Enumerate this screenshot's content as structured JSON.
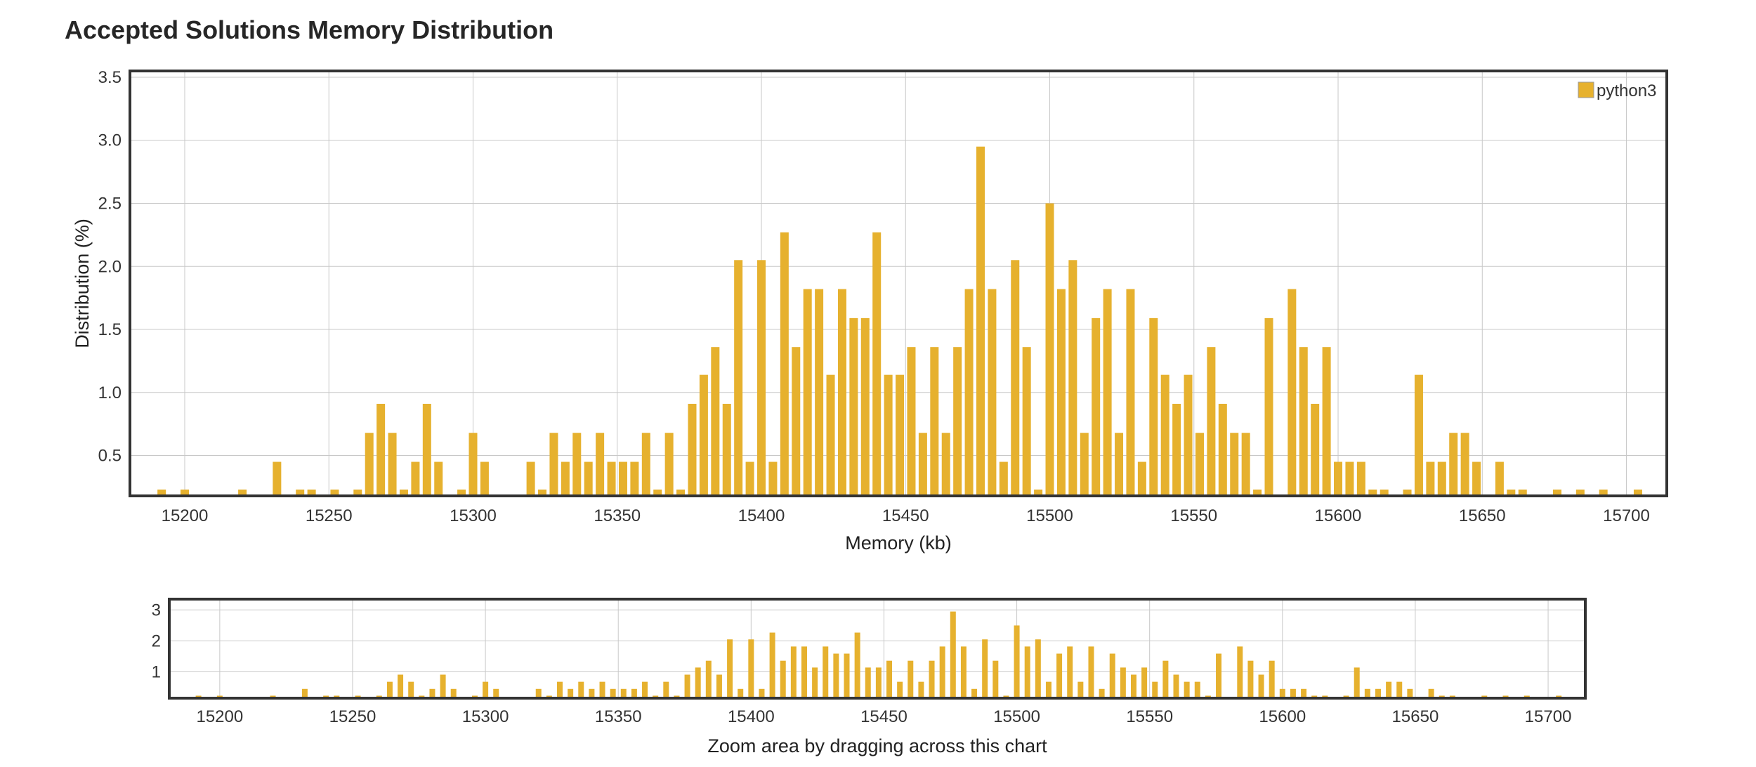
{
  "title": "Accepted Solutions Memory Distribution",
  "colors": {
    "bar": "#e6b12e",
    "grid": "#c8c8c8",
    "frame": "#333333"
  },
  "chart_data": [
    {
      "type": "bar",
      "title": "Accepted Solutions Memory Distribution",
      "xlabel": "Memory (kb)",
      "ylabel": "Distribution (%)",
      "xlim": [
        15181,
        15714
      ],
      "ylim": [
        0.18,
        3.55
      ],
      "xticks": [
        15200,
        15250,
        15300,
        15350,
        15400,
        15450,
        15500,
        15550,
        15600,
        15650,
        15700
      ],
      "yticks": [
        0.5,
        1.0,
        1.5,
        2.0,
        2.5,
        3.0,
        3.5
      ],
      "ytick_labels": [
        "0.5",
        "1.0",
        "1.5",
        "2.0",
        "2.5",
        "3.0",
        "3.5"
      ],
      "grid": true,
      "legend_position": "top-right",
      "series": [
        {
          "name": "python3",
          "x": [
            15192,
            15200,
            15220,
            15232,
            15240,
            15244,
            15252,
            15260,
            15264,
            15268,
            15272,
            15276,
            15280,
            15284,
            15288,
            15296,
            15300,
            15304,
            15320,
            15324,
            15328,
            15332,
            15336,
            15340,
            15344,
            15348,
            15352,
            15356,
            15360,
            15364,
            15368,
            15372,
            15376,
            15380,
            15384,
            15388,
            15392,
            15396,
            15400,
            15404,
            15408,
            15412,
            15416,
            15420,
            15424,
            15428,
            15432,
            15436,
            15440,
            15444,
            15448,
            15452,
            15456,
            15460,
            15464,
            15468,
            15472,
            15476,
            15480,
            15484,
            15488,
            15492,
            15496,
            15500,
            15504,
            15508,
            15512,
            15516,
            15520,
            15524,
            15528,
            15532,
            15536,
            15540,
            15544,
            15548,
            15552,
            15556,
            15560,
            15564,
            15568,
            15572,
            15576,
            15584,
            15588,
            15592,
            15596,
            15600,
            15604,
            15608,
            15612,
            15616,
            15624,
            15628,
            15632,
            15636,
            15640,
            15644,
            15648,
            15656,
            15660,
            15664,
            15676,
            15684,
            15692,
            15704
          ],
          "values": [
            0.23,
            0.23,
            0.23,
            0.45,
            0.23,
            0.23,
            0.23,
            0.23,
            0.68,
            0.91,
            0.68,
            0.23,
            0.45,
            0.91,
            0.45,
            0.23,
            0.68,
            0.45,
            0.45,
            0.23,
            0.68,
            0.45,
            0.68,
            0.45,
            0.68,
            0.45,
            0.45,
            0.45,
            0.68,
            0.23,
            0.68,
            0.23,
            0.91,
            1.14,
            1.36,
            0.91,
            2.05,
            0.45,
            2.05,
            0.45,
            2.27,
            1.36,
            1.82,
            1.82,
            1.14,
            1.82,
            1.59,
            1.59,
            2.27,
            1.14,
            1.14,
            1.36,
            0.68,
            1.36,
            0.68,
            1.36,
            1.82,
            2.95,
            1.82,
            0.45,
            2.05,
            1.36,
            0.23,
            2.5,
            1.82,
            2.05,
            0.68,
            1.59,
            1.82,
            0.68,
            1.82,
            0.45,
            1.59,
            1.14,
            0.91,
            1.14,
            0.68,
            1.36,
            0.91,
            0.68,
            0.68,
            0.23,
            1.59,
            1.82,
            1.36,
            0.91,
            1.36,
            0.45,
            0.45,
            0.45,
            0.23,
            0.23,
            0.23,
            1.14,
            0.45,
            0.45,
            0.68,
            0.68,
            0.45,
            0.45,
            0.23,
            0.23,
            0.23,
            0.23,
            0.23,
            0.23
          ]
        }
      ]
    },
    {
      "type": "bar",
      "xlabel": "Zoom area by dragging across this chart",
      "xlim": [
        15181,
        15714
      ],
      "ylim": [
        0.15,
        3.35
      ],
      "xticks": [
        15200,
        15250,
        15300,
        15350,
        15400,
        15450,
        15500,
        15550,
        15600,
        15650,
        15700
      ],
      "yticks": [
        1,
        2,
        3
      ],
      "ytick_labels": [
        "1",
        "2",
        "3"
      ],
      "grid": true
    }
  ]
}
